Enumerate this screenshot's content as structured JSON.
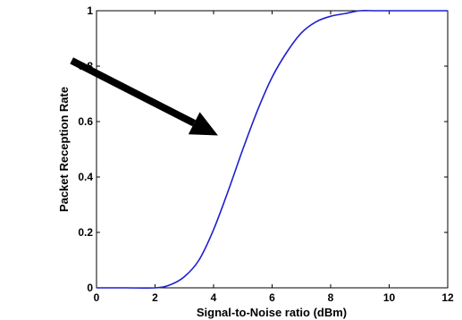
{
  "chart_data": {
    "type": "line",
    "title": "",
    "xlabel": "Signal-to-Noise ratio (dBm)",
    "ylabel": "Packet Reception Rate",
    "xlim": [
      0,
      12
    ],
    "ylim": [
      0,
      1
    ],
    "xticks": [
      0,
      2,
      4,
      6,
      8,
      10,
      12
    ],
    "yticks": [
      0,
      0.2,
      0.4,
      0.6,
      0.8,
      1
    ],
    "xtick_labels": [
      "0",
      "2",
      "4",
      "6",
      "8",
      "10",
      "12"
    ],
    "ytick_labels": [
      "0",
      "0.2",
      "0.4",
      "0.6",
      "0.8",
      "1"
    ],
    "grid": false,
    "series": [
      {
        "color": "#1f1fd0",
        "x": [
          0,
          1,
          2,
          2.5,
          3,
          3.5,
          4,
          4.5,
          5,
          5.5,
          6,
          6.5,
          7,
          7.5,
          8,
          8.5,
          9,
          9.5,
          10,
          11,
          12
        ],
        "y": [
          0,
          0,
          0,
          0.01,
          0.04,
          0.1,
          0.21,
          0.35,
          0.5,
          0.64,
          0.76,
          0.85,
          0.92,
          0.96,
          0.98,
          0.99,
          1,
          1,
          1,
          1,
          1
        ]
      }
    ],
    "annotations": [
      {
        "type": "arrow",
        "color": "#000000",
        "from": [
          -0.85,
          0.82
        ],
        "to": [
          4.15,
          0.55
        ]
      }
    ]
  }
}
